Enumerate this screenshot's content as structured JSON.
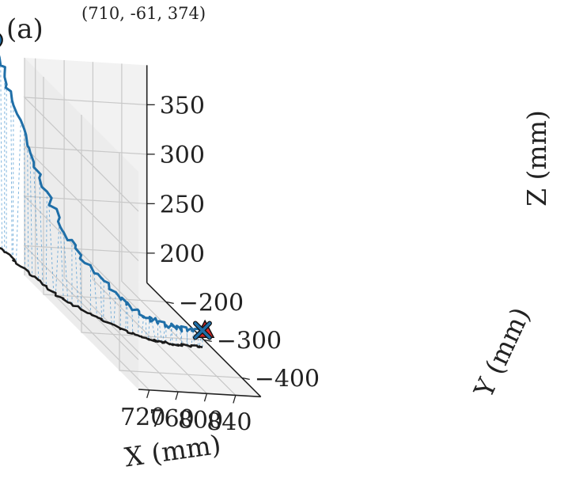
{
  "panel_label": "(a)",
  "start_annotation": "(710, -61, 374)",
  "colors": {
    "trajectory": "#1f6fa8",
    "projection": "#1a1a1a",
    "drop_lines": "#5a9fd4",
    "start_marker": "#1f6fa8",
    "end_marker_x": "#1f6fa8",
    "target_marker": "#d62728",
    "grid": "#c8c8c8",
    "pane": "#f2f2f2"
  },
  "chart_data": {
    "type": "line3d",
    "title": "",
    "xlabel": "X (mm)",
    "ylabel": "Y (mm)",
    "zlabel": "Z (mm)",
    "x_ticks": [
      "720",
      "760",
      "800",
      "840"
    ],
    "y_ticks": [
      "−200",
      "−300",
      "−400"
    ],
    "z_ticks": [
      "200",
      "250",
      "300",
      "350"
    ],
    "xlim": [
      705,
      875
    ],
    "ylim": [
      -450,
      -150
    ],
    "zlim": [
      170,
      390
    ],
    "grid": true,
    "trajectory": {
      "x": [
        710,
        710,
        711,
        712,
        713,
        715,
        717,
        720,
        724,
        729,
        736,
        744,
        752,
        760,
        768,
        776,
        784,
        792,
        800,
        808,
        816,
        824,
        832,
        840,
        848,
        856,
        862
      ],
      "y": [
        -61,
        -70,
        -85,
        -100,
        -120,
        -140,
        -160,
        -180,
        -200,
        -215,
        -230,
        -245,
        -258,
        -270,
        -282,
        -292,
        -300,
        -306,
        -310,
        -313,
        -315,
        -317,
        -318,
        -319,
        -320,
        -320,
        -321
      ],
      "z": [
        374,
        365,
        350,
        335,
        318,
        300,
        283,
        266,
        250,
        238,
        228,
        219,
        212,
        206,
        201,
        197,
        194,
        192,
        190,
        189,
        188,
        188,
        187,
        187,
        187,
        187,
        187
      ]
    },
    "markers": {
      "start": {
        "x": 710,
        "y": -61,
        "z": 374,
        "shape": "circle"
      },
      "end": {
        "x": 862,
        "y": -321,
        "z": 187,
        "shape": "x"
      },
      "target": {
        "x": 866,
        "y": -320,
        "z": 187,
        "shape": "triangle"
      }
    }
  }
}
